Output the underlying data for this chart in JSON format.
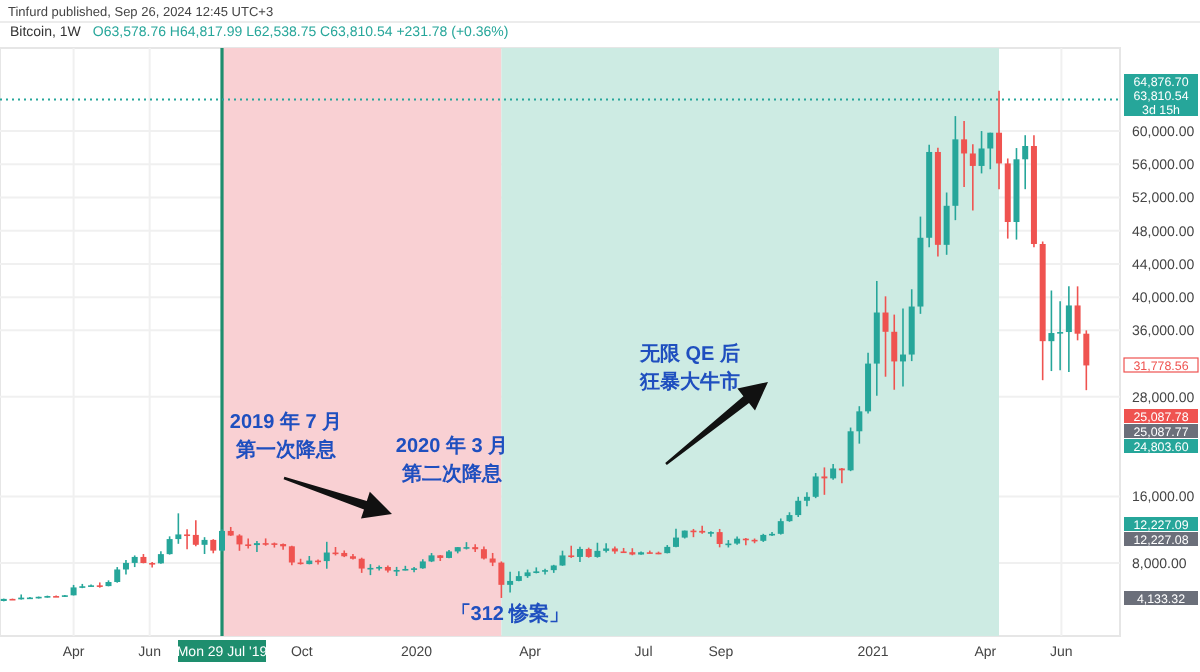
{
  "chart_data": {
    "type": "candlestick",
    "title": "Bitcoin, 1W",
    "subtitle": "O63,578.76 H64,817.99 L62,538.75 C63,810.54 +231.78 (+0.36%)",
    "x": [
      "2019-02-04",
      "2019-02-11",
      "2019-02-18",
      "2019-02-25",
      "2019-03-04",
      "2019-03-11",
      "2019-03-18",
      "2019-03-25",
      "2019-04-01",
      "2019-04-08",
      "2019-04-15",
      "2019-04-22",
      "2019-04-29",
      "2019-05-06",
      "2019-05-13",
      "2019-05-20",
      "2019-05-27",
      "2019-06-03",
      "2019-06-10",
      "2019-06-17",
      "2019-06-24",
      "2019-07-01",
      "2019-07-08",
      "2019-07-15",
      "2019-07-22",
      "2019-07-29",
      "2019-08-05",
      "2019-08-12",
      "2019-08-19",
      "2019-08-26",
      "2019-09-02",
      "2019-09-09",
      "2019-09-16",
      "2019-09-23",
      "2019-09-30",
      "2019-10-07",
      "2019-10-14",
      "2019-10-21",
      "2019-10-28",
      "2019-11-04",
      "2019-11-11",
      "2019-11-18",
      "2019-11-25",
      "2019-12-02",
      "2019-12-09",
      "2019-12-16",
      "2019-12-23",
      "2019-12-30",
      "2020-01-06",
      "2020-01-13",
      "2020-01-20",
      "2020-01-27",
      "2020-02-03",
      "2020-02-10",
      "2020-02-17",
      "2020-02-24",
      "2020-03-02",
      "2020-03-09",
      "2020-03-16",
      "2020-03-23",
      "2020-03-30",
      "2020-04-06",
      "2020-04-13",
      "2020-04-20",
      "2020-04-27",
      "2020-05-04",
      "2020-05-11",
      "2020-05-18",
      "2020-05-25",
      "2020-06-01",
      "2020-06-08",
      "2020-06-15",
      "2020-06-22",
      "2020-06-29",
      "2020-07-06",
      "2020-07-13",
      "2020-07-20",
      "2020-07-27",
      "2020-08-03",
      "2020-08-10",
      "2020-08-17",
      "2020-08-24",
      "2020-08-31",
      "2020-09-07",
      "2020-09-14",
      "2020-09-21",
      "2020-09-28",
      "2020-10-05",
      "2020-10-12",
      "2020-10-19",
      "2020-10-26",
      "2020-11-02",
      "2020-11-09",
      "2020-11-16",
      "2020-11-23",
      "2020-11-30",
      "2020-12-07",
      "2020-12-14",
      "2020-12-21",
      "2020-12-28",
      "2021-01-04",
      "2021-01-11",
      "2021-01-18",
      "2021-01-25",
      "2021-02-01",
      "2021-02-08",
      "2021-02-15",
      "2021-02-22",
      "2021-03-01",
      "2021-03-08",
      "2021-03-15",
      "2021-03-22",
      "2021-03-29",
      "2021-04-05",
      "2021-04-12",
      "2021-04-19",
      "2021-04-26",
      "2021-05-03",
      "2021-05-10",
      "2021-05-17",
      "2021-05-24",
      "2021-05-31",
      "2021-06-07",
      "2021-06-14",
      "2021-06-21"
    ],
    "ohlc": [
      [
        3414,
        3700,
        3373,
        3667
      ],
      [
        3667,
        3700,
        3580,
        3615
      ],
      [
        3615,
        4200,
        3590,
        3820
      ],
      [
        3820,
        3900,
        3660,
        3830
      ],
      [
        3830,
        3950,
        3710,
        3920
      ],
      [
        3920,
        4060,
        3820,
        4010
      ],
      [
        4010,
        4090,
        3930,
        3980
      ],
      [
        3980,
        4130,
        3900,
        4100
      ],
      [
        4100,
        5350,
        4080,
        5050
      ],
      [
        5050,
        5470,
        4960,
        5190
      ],
      [
        5190,
        5400,
        5150,
        5300
      ],
      [
        5300,
        5650,
        5020,
        5210
      ],
      [
        5210,
        5900,
        5180,
        5700
      ],
      [
        5700,
        7500,
        5620,
        7210
      ],
      [
        7210,
        8350,
        6600,
        8000
      ],
      [
        8000,
        8900,
        7500,
        8720
      ],
      [
        8720,
        9070,
        7950,
        7990
      ],
      [
        7990,
        8100,
        7450,
        7950
      ],
      [
        7950,
        9390,
        7900,
        9060
      ],
      [
        9060,
        11200,
        9000,
        10870
      ],
      [
        10870,
        13970,
        10300,
        11430
      ],
      [
        11430,
        12050,
        9650,
        11370
      ],
      [
        11370,
        13130,
        10000,
        10180
      ],
      [
        10180,
        11100,
        9070,
        10770
      ],
      [
        10770,
        10860,
        9160,
        9480
      ],
      [
        9480,
        12040,
        9400,
        11850
      ],
      [
        11850,
        12330,
        11250,
        11300
      ],
      [
        11300,
        11450,
        9460,
        10230
      ],
      [
        10230,
        10950,
        9740,
        10150
      ],
      [
        10150,
        10630,
        9320,
        10380
      ],
      [
        10380,
        10950,
        10070,
        10360
      ],
      [
        10360,
        10450,
        9850,
        10270
      ],
      [
        10270,
        10350,
        9600,
        10000
      ],
      [
        10000,
        10080,
        7730,
        8050
      ],
      [
        8050,
        8500,
        7800,
        7860
      ],
      [
        7860,
        8830,
        7830,
        8280
      ],
      [
        8280,
        8410,
        7820,
        8220
      ],
      [
        8220,
        10540,
        7300,
        9250
      ],
      [
        9250,
        9920,
        8900,
        9200
      ],
      [
        9200,
        9500,
        8700,
        8800
      ],
      [
        8800,
        9080,
        8400,
        8500
      ],
      [
        8500,
        8630,
        6800,
        7320
      ],
      [
        7320,
        7850,
        6530,
        7400
      ],
      [
        7400,
        7700,
        7100,
        7510
      ],
      [
        7510,
        7700,
        6850,
        7080
      ],
      [
        7080,
        7520,
        6430,
        7150
      ],
      [
        7150,
        7650,
        7100,
        7270
      ],
      [
        7270,
        7500,
        6870,
        7350
      ],
      [
        7350,
        8450,
        7310,
        8180
      ],
      [
        8180,
        9190,
        8100,
        8910
      ],
      [
        8910,
        8950,
        8230,
        8600
      ],
      [
        8600,
        9560,
        8560,
        9380
      ],
      [
        9380,
        9900,
        9150,
        9900
      ],
      [
        9900,
        10500,
        9620,
        9900
      ],
      [
        9900,
        10240,
        9300,
        9650
      ],
      [
        9650,
        9970,
        8400,
        8530
      ],
      [
        8530,
        9200,
        7620,
        8040
      ],
      [
        8040,
        8180,
        3780,
        5360
      ],
      [
        5360,
        6940,
        4440,
        5830
      ],
      [
        5830,
        6990,
        5800,
        6410
      ],
      [
        6410,
        7200,
        6200,
        6860
      ],
      [
        6860,
        7460,
        6740,
        6980
      ],
      [
        6980,
        7300,
        6600,
        7130
      ],
      [
        7130,
        7770,
        6800,
        7690
      ],
      [
        7690,
        9470,
        7650,
        8900
      ],
      [
        8900,
        10070,
        8600,
        8720
      ],
      [
        8720,
        9950,
        8100,
        9680
      ],
      [
        9680,
        9840,
        8630,
        8720
      ],
      [
        8720,
        10430,
        8630,
        9450
      ],
      [
        9450,
        10380,
        9250,
        9740
      ],
      [
        9740,
        9990,
        9100,
        9380
      ],
      [
        9380,
        9800,
        9200,
        9290
      ],
      [
        9290,
        9770,
        8920,
        9010
      ],
      [
        9010,
        9360,
        8980,
        9280
      ],
      [
        9280,
        9480,
        9150,
        9230
      ],
      [
        9230,
        9360,
        9050,
        9180
      ],
      [
        9180,
        10150,
        9150,
        9930
      ],
      [
        9930,
        12100,
        9900,
        11050
      ],
      [
        11050,
        11900,
        10940,
        11890
      ],
      [
        11890,
        12090,
        11100,
        11860
      ],
      [
        11860,
        12470,
        11520,
        11650
      ],
      [
        11650,
        11800,
        11140,
        11710
      ],
      [
        11710,
        12090,
        9875,
        10280
      ],
      [
        10280,
        10750,
        9860,
        10330
      ],
      [
        10330,
        11180,
        10200,
        10920
      ],
      [
        10920,
        10990,
        10140,
        10780
      ],
      [
        10780,
        10940,
        10370,
        10660
      ],
      [
        10660,
        11500,
        10530,
        11370
      ],
      [
        11370,
        11720,
        11240,
        11500
      ],
      [
        11500,
        13350,
        11410,
        13030
      ],
      [
        13030,
        14100,
        12950,
        13760
      ],
      [
        13760,
        15960,
        13530,
        15480
      ],
      [
        15480,
        16500,
        14830,
        15960
      ],
      [
        15960,
        18820,
        15800,
        18410
      ],
      [
        18410,
        19500,
        16200,
        18180
      ],
      [
        18180,
        19920,
        18000,
        19370
      ],
      [
        19370,
        19420,
        17600,
        19150
      ],
      [
        19150,
        24300,
        19050,
        23850
      ],
      [
        23850,
        26870,
        22360,
        26250
      ],
      [
        26250,
        33300,
        26000,
        32000
      ],
      [
        32000,
        41950,
        28130,
        38150
      ],
      [
        38150,
        40100,
        30420,
        35830
      ],
      [
        35830,
        37900,
        28850,
        32260
      ],
      [
        32260,
        38640,
        29240,
        33090
      ],
      [
        33090,
        40950,
        32300,
        38870
      ],
      [
        38870,
        49700,
        37990,
        47150
      ],
      [
        47150,
        58350,
        46000,
        57480
      ],
      [
        57480,
        58000,
        44900,
        46300
      ],
      [
        46300,
        52600,
        45100,
        51000
      ],
      [
        51000,
        61800,
        49270,
        59000
      ],
      [
        59000,
        61200,
        53270,
        57300
      ],
      [
        57300,
        58400,
        50420,
        55800
      ],
      [
        55800,
        60000,
        54900,
        57900
      ],
      [
        57900,
        59800,
        55400,
        59800
      ],
      [
        59800,
        64850,
        53000,
        56100
      ],
      [
        56100,
        56700,
        47050,
        49050
      ],
      [
        49050,
        57950,
        46930,
        56600
      ],
      [
        56600,
        59500,
        53000,
        58200
      ],
      [
        58200,
        59500,
        46000,
        46400
      ],
      [
        46400,
        46700,
        30000,
        34700
      ],
      [
        34700,
        40800,
        31100,
        35680
      ],
      [
        35680,
        39500,
        31200,
        35800
      ],
      [
        35800,
        41300,
        31000,
        39000
      ],
      [
        39000,
        41300,
        34800,
        35600
      ],
      [
        35600,
        36000,
        28800,
        31778.56
      ]
    ],
    "bands": [
      {
        "axis": "x",
        "from": "2019-07-29",
        "to": "2020-03-09",
        "color": "#f9d0d3"
      },
      {
        "axis": "x",
        "from": "2020-03-09",
        "to": "2021-04-12",
        "color": "#cdebe3"
      }
    ],
    "xlim": [
      "2019-02-01",
      "2021-07-18"
    ],
    "ylim": [
      -800,
      70000
    ],
    "xticks": [
      {
        "value": "2019-04-01",
        "label": "Apr"
      },
      {
        "value": "2019-06-01",
        "label": "Jun"
      },
      {
        "value": "2019-10-01",
        "label": "Oct"
      },
      {
        "value": "2020-01-01",
        "label": "2020"
      },
      {
        "value": "2020-04-01",
        "label": "Apr"
      },
      {
        "value": "2020-07-01",
        "label": "Jul"
      },
      {
        "value": "2020-09-01",
        "label": "Sep"
      },
      {
        "value": "2021-01-01",
        "label": "2021"
      },
      {
        "value": "2021-04-01",
        "label": "Apr"
      },
      {
        "value": "2021-06-01",
        "label": "Jun"
      }
    ],
    "yticks": [
      {
        "value": 8000,
        "label": "8,000.00"
      },
      {
        "value": 16000,
        "label": "16,000.00"
      },
      {
        "value": 28000,
        "label": "28,000.00"
      },
      {
        "value": 36000,
        "label": "36,000.00"
      },
      {
        "value": 40000,
        "label": "40,000.00"
      },
      {
        "value": 44000,
        "label": "44,000.00"
      },
      {
        "value": 48000,
        "label": "48,000.00"
      },
      {
        "value": 52000,
        "label": "52,000.00"
      },
      {
        "value": 56000,
        "label": "56,000.00"
      },
      {
        "value": 60000,
        "label": "60,000.00"
      }
    ],
    "grid": true,
    "ref_lines": [
      {
        "axis": "x",
        "value": "2019-07-29",
        "label": "Mon 29 Jul '19",
        "color": "#1e8e6e"
      },
      {
        "axis": "y",
        "value": 63810.54,
        "color": "#26a69a",
        "line_style": "dotted"
      }
    ],
    "annotations": [
      "Tinfurd published, Sep 26, 2024 12:45 UTC+3",
      "64,876.70",
      "63,810.54",
      "3d 15h",
      "31,778.56",
      "25,087.78",
      "25,087.77",
      "24,803.60",
      "12,227.09",
      "12,227.08",
      "4,133.32",
      "2019 年 7 月",
      "第一次降息",
      "2020 年 3 月",
      "第二次降息",
      "「312 惨案」",
      "无限 QE 后",
      "狂暴大牛市"
    ]
  }
}
